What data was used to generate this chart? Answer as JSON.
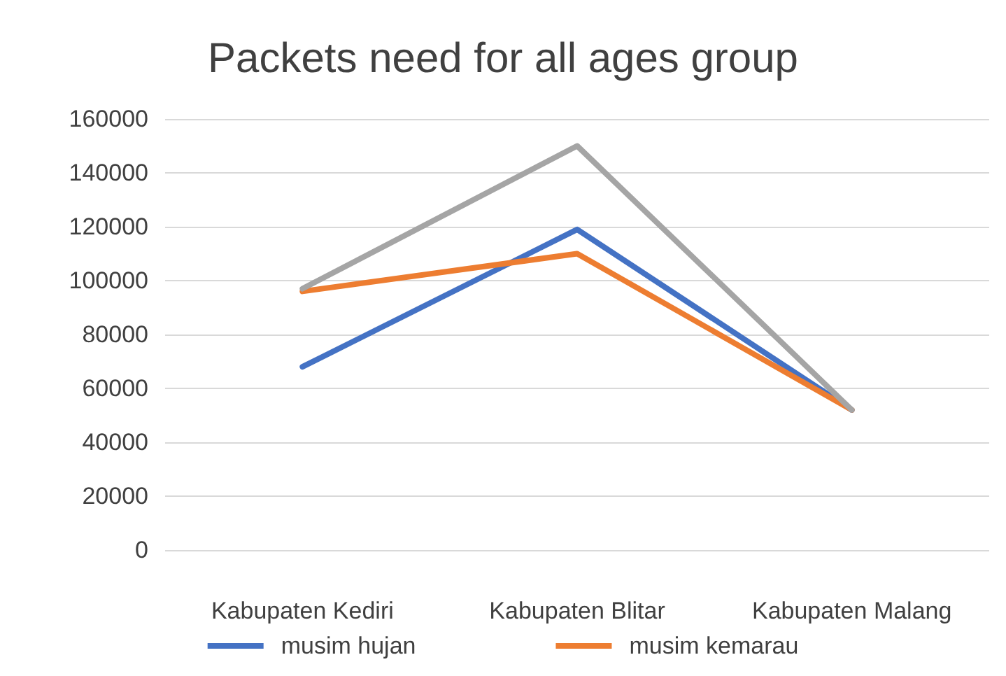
{
  "chart_data": {
    "type": "line",
    "title": "Packets need for all ages group",
    "categories": [
      "Kabupaten Kediri",
      "Kabupaten Blitar",
      "Kabupaten Malang"
    ],
    "series": [
      {
        "name": "musim hujan",
        "color": "#4472c4",
        "values": [
          68000,
          119000,
          52000
        ]
      },
      {
        "name": "musim kemarau",
        "color": "#ed7d31",
        "values": [
          96000,
          110000,
          52000
        ]
      },
      {
        "color": "#a5a5a5",
        "values": [
          97000,
          150000,
          52000
        ]
      }
    ],
    "ylim": [
      0,
      160000
    ],
    "yticks": [
      0,
      20000,
      40000,
      60000,
      80000,
      100000,
      120000,
      140000,
      160000
    ],
    "grid": "y",
    "legend": "bottom",
    "marker": "none",
    "line_style": "solid"
  }
}
